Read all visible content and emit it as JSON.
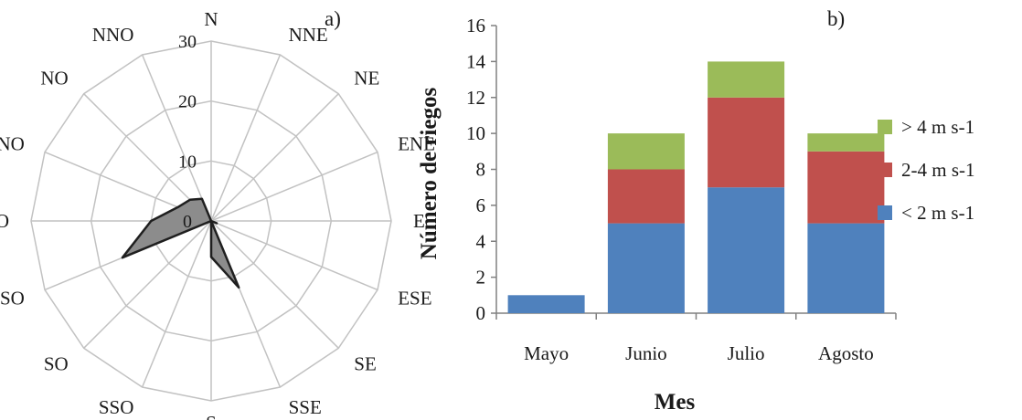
{
  "chart_data": [
    {
      "type": "radar",
      "panel_label": "a)",
      "directions": [
        "N",
        "NNE",
        "NE",
        "ENE",
        "E",
        "ESE",
        "SE",
        "SSE",
        "S",
        "SSO",
        "SO",
        "OSO",
        "O",
        "ONO",
        "NO",
        "NNO"
      ],
      "rings": [
        0,
        10,
        20,
        30
      ],
      "ring_labels": [
        "0",
        "10",
        "20",
        "30"
      ],
      "rmax": 30,
      "series": [
        {
          "values": [
            0,
            0,
            0,
            0,
            0,
            1,
            0,
            12,
            6,
            0,
            0,
            16,
            10,
            6,
            5,
            4
          ]
        }
      ],
      "colors": {
        "fill": "#8c8c8c",
        "stroke": "#1f1f1f",
        "grid": "#c2c2c2"
      }
    },
    {
      "type": "bar",
      "stacked": true,
      "panel_label": "b)",
      "categories": [
        "Mayo",
        "Junio",
        "Julio",
        "Agosto"
      ],
      "xlabel": "Mes",
      "ylabel": "Número de riegos",
      "ylim": [
        0,
        16
      ],
      "yticks": [
        "0",
        "2",
        "4",
        "6",
        "8",
        "10",
        "12",
        "14",
        "16"
      ],
      "legend_position": "right",
      "series": [
        {
          "name": "< 2 m s-1",
          "values": [
            1,
            5,
            7,
            5
          ],
          "color": "#4f81bd"
        },
        {
          "name": "2-4 m s-1",
          "values": [
            0,
            3,
            5,
            4
          ],
          "color": "#c0504d"
        },
        {
          "name": "> 4 m s-1",
          "values": [
            0,
            2,
            2,
            1
          ],
          "color": "#9bbb59"
        }
      ]
    }
  ]
}
